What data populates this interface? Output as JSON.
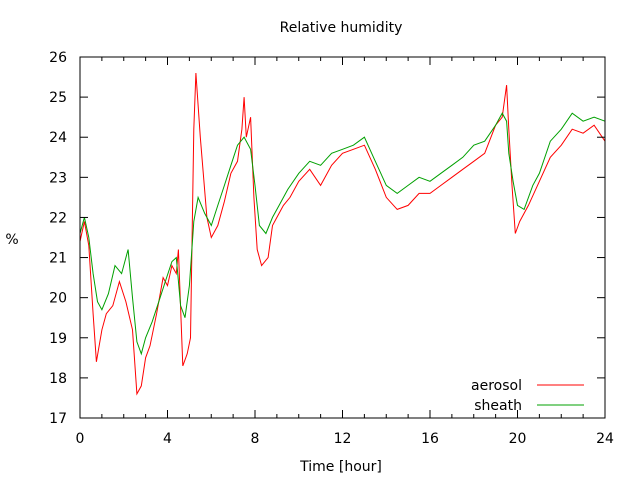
{
  "chart_data": {
    "type": "line",
    "title": "Relative humidity",
    "xlabel": "Time [hour]",
    "ylabel": "%",
    "xlim": [
      0,
      24
    ],
    "ylim": [
      17,
      26
    ],
    "xticks": [
      0,
      4,
      8,
      12,
      16,
      20,
      24
    ],
    "yticks": [
      17,
      18,
      19,
      20,
      21,
      22,
      23,
      24,
      25,
      26
    ],
    "grid": false,
    "legend_position": "bottom-right",
    "series": [
      {
        "name": "aerosol",
        "color": "#ff0000",
        "points": [
          [
            0.0,
            21.4
          ],
          [
            0.2,
            21.9
          ],
          [
            0.4,
            21.3
          ],
          [
            0.6,
            19.6
          ],
          [
            0.75,
            18.4
          ],
          [
            1.0,
            19.2
          ],
          [
            1.2,
            19.6
          ],
          [
            1.5,
            19.8
          ],
          [
            1.8,
            20.4
          ],
          [
            2.1,
            19.9
          ],
          [
            2.4,
            19.2
          ],
          [
            2.6,
            17.6
          ],
          [
            2.8,
            17.8
          ],
          [
            3.0,
            18.5
          ],
          [
            3.2,
            18.8
          ],
          [
            3.5,
            19.6
          ],
          [
            3.8,
            20.5
          ],
          [
            4.0,
            20.3
          ],
          [
            4.2,
            20.8
          ],
          [
            4.4,
            20.6
          ],
          [
            4.5,
            21.2
          ],
          [
            4.7,
            18.3
          ],
          [
            4.9,
            18.6
          ],
          [
            5.05,
            19.0
          ],
          [
            5.2,
            24.2
          ],
          [
            5.3,
            25.6
          ],
          [
            5.5,
            24.0
          ],
          [
            5.8,
            22.0
          ],
          [
            6.0,
            21.5
          ],
          [
            6.3,
            21.8
          ],
          [
            6.6,
            22.4
          ],
          [
            6.9,
            23.1
          ],
          [
            7.2,
            23.4
          ],
          [
            7.4,
            24.2
          ],
          [
            7.5,
            25.0
          ],
          [
            7.6,
            24.0
          ],
          [
            7.8,
            24.5
          ],
          [
            7.95,
            22.5
          ],
          [
            8.1,
            21.2
          ],
          [
            8.3,
            20.8
          ],
          [
            8.6,
            21.0
          ],
          [
            8.8,
            21.8
          ],
          [
            9.0,
            22.0
          ],
          [
            9.3,
            22.3
          ],
          [
            9.6,
            22.5
          ],
          [
            10.0,
            22.9
          ],
          [
            10.5,
            23.2
          ],
          [
            11.0,
            22.8
          ],
          [
            11.5,
            23.3
          ],
          [
            12.0,
            23.6
          ],
          [
            12.5,
            23.7
          ],
          [
            13.0,
            23.8
          ],
          [
            13.5,
            23.2
          ],
          [
            14.0,
            22.5
          ],
          [
            14.5,
            22.2
          ],
          [
            15.0,
            22.3
          ],
          [
            15.5,
            22.6
          ],
          [
            16.0,
            22.6
          ],
          [
            16.5,
            22.8
          ],
          [
            17.0,
            23.0
          ],
          [
            17.5,
            23.2
          ],
          [
            18.0,
            23.4
          ],
          [
            18.5,
            23.6
          ],
          [
            19.0,
            24.3
          ],
          [
            19.3,
            24.5
          ],
          [
            19.5,
            25.3
          ],
          [
            19.6,
            24.2
          ],
          [
            19.75,
            22.8
          ],
          [
            19.9,
            21.6
          ],
          [
            20.1,
            21.9
          ],
          [
            20.5,
            22.3
          ],
          [
            21.0,
            22.9
          ],
          [
            21.5,
            23.5
          ],
          [
            22.0,
            23.8
          ],
          [
            22.5,
            24.2
          ],
          [
            23.0,
            24.1
          ],
          [
            23.5,
            24.3
          ],
          [
            24.0,
            23.9
          ]
        ]
      },
      {
        "name": "sheath",
        "color": "#00a000",
        "points": [
          [
            0.0,
            21.6
          ],
          [
            0.2,
            22.0
          ],
          [
            0.4,
            21.5
          ],
          [
            0.6,
            20.6
          ],
          [
            0.8,
            19.9
          ],
          [
            1.0,
            19.7
          ],
          [
            1.3,
            20.1
          ],
          [
            1.6,
            20.8
          ],
          [
            1.9,
            20.6
          ],
          [
            2.2,
            21.2
          ],
          [
            2.4,
            20.0
          ],
          [
            2.6,
            18.9
          ],
          [
            2.8,
            18.6
          ],
          [
            3.0,
            19.0
          ],
          [
            3.3,
            19.4
          ],
          [
            3.6,
            19.9
          ],
          [
            3.9,
            20.4
          ],
          [
            4.2,
            20.9
          ],
          [
            4.4,
            21.0
          ],
          [
            4.6,
            19.8
          ],
          [
            4.8,
            19.5
          ],
          [
            5.0,
            20.3
          ],
          [
            5.2,
            21.9
          ],
          [
            5.4,
            22.5
          ],
          [
            5.7,
            22.1
          ],
          [
            6.0,
            21.8
          ],
          [
            6.3,
            22.3
          ],
          [
            6.6,
            22.8
          ],
          [
            6.9,
            23.3
          ],
          [
            7.2,
            23.8
          ],
          [
            7.5,
            24.0
          ],
          [
            7.8,
            23.7
          ],
          [
            8.0,
            22.8
          ],
          [
            8.2,
            21.8
          ],
          [
            8.5,
            21.6
          ],
          [
            8.8,
            22.0
          ],
          [
            9.1,
            22.3
          ],
          [
            9.5,
            22.7
          ],
          [
            10.0,
            23.1
          ],
          [
            10.5,
            23.4
          ],
          [
            11.0,
            23.3
          ],
          [
            11.5,
            23.6
          ],
          [
            12.0,
            23.7
          ],
          [
            12.5,
            23.8
          ],
          [
            13.0,
            24.0
          ],
          [
            13.5,
            23.4
          ],
          [
            14.0,
            22.8
          ],
          [
            14.5,
            22.6
          ],
          [
            15.0,
            22.8
          ],
          [
            15.5,
            23.0
          ],
          [
            16.0,
            22.9
          ],
          [
            16.5,
            23.1
          ],
          [
            17.0,
            23.3
          ],
          [
            17.5,
            23.5
          ],
          [
            18.0,
            23.8
          ],
          [
            18.5,
            23.9
          ],
          [
            19.0,
            24.3
          ],
          [
            19.3,
            24.6
          ],
          [
            19.5,
            24.4
          ],
          [
            19.6,
            23.6
          ],
          [
            19.8,
            22.9
          ],
          [
            20.0,
            22.3
          ],
          [
            20.3,
            22.2
          ],
          [
            20.7,
            22.8
          ],
          [
            21.0,
            23.1
          ],
          [
            21.5,
            23.9
          ],
          [
            22.0,
            24.2
          ],
          [
            22.5,
            24.6
          ],
          [
            23.0,
            24.4
          ],
          [
            23.5,
            24.5
          ],
          [
            24.0,
            24.4
          ]
        ]
      }
    ]
  }
}
